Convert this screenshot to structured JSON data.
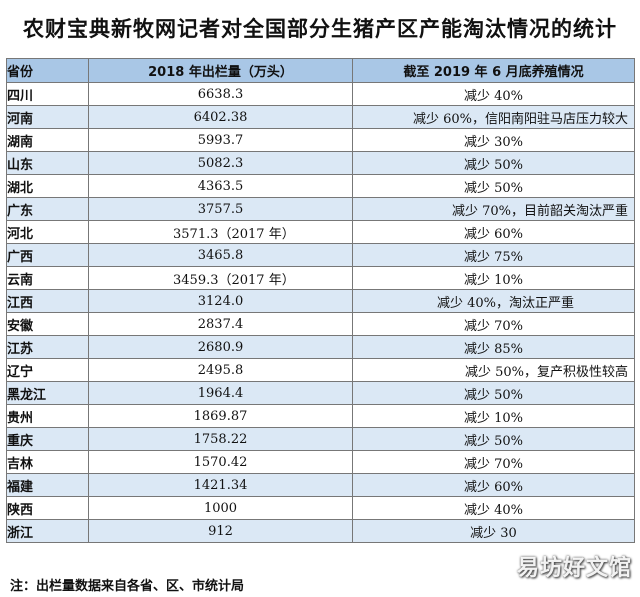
{
  "title": "农财宝典新牧网记者对全国部分生猪产区产能淘汰情况的统计",
  "table": {
    "headers": [
      "省份",
      "2018 年出栏量（万头）",
      "截至 2019 年 6 月底养殖情况"
    ],
    "rows": [
      {
        "province": "四川",
        "output": "6638.3",
        "status": "减少 40%"
      },
      {
        "province": "河南",
        "output": "6402.38",
        "status": "减少 60%，信阳南阳驻马店压力较大"
      },
      {
        "province": "湖南",
        "output": "5993.7",
        "status": "减少 30%"
      },
      {
        "province": "山东",
        "output": "5082.3",
        "status": "减少 50%"
      },
      {
        "province": "湖北",
        "output": "4363.5",
        "status": "减少 50%"
      },
      {
        "province": "广东",
        "output": "3757.5",
        "status": "减少 70%，目前韶关淘汰严重"
      },
      {
        "province": "河北",
        "output": "3571.3（2017 年）",
        "status": "减少 60%"
      },
      {
        "province": "广西",
        "output": "3465.8",
        "status": "减少 75%"
      },
      {
        "province": "云南",
        "output": "3459.3（2017 年）",
        "status": "减少 10%"
      },
      {
        "province": "江西",
        "output": "3124.0",
        "status": "减少 40%，淘汰正严重"
      },
      {
        "province": "安徽",
        "output": "2837.4",
        "status": "减少 70%"
      },
      {
        "province": "江苏",
        "output": "2680.9",
        "status": "减少 85%"
      },
      {
        "province": "辽宁",
        "output": "2495.8",
        "status": "减少 50%，复产积极性较高"
      },
      {
        "province": "黑龙江",
        "output": "1964.4",
        "status": "减少 50%"
      },
      {
        "province": "贵州",
        "output": "1869.87",
        "status": "减少 10%"
      },
      {
        "province": "重庆",
        "output": "1758.22",
        "status": "减少 50%"
      },
      {
        "province": "吉林",
        "output": "1570.42",
        "status": "减少 70%"
      },
      {
        "province": "福建",
        "output": "1421.34",
        "status": "减少 60%"
      },
      {
        "province": "陕西",
        "output": "1000",
        "status": "减少 40%"
      },
      {
        "province": "浙江",
        "output": "912",
        "status": "减少 30"
      }
    ]
  },
  "note": "注：出栏量数据来自各省、区、市统计局",
  "watermark": "易坊好文馆",
  "colors": {
    "header_bg": "#a9c7e6",
    "stripe_bg": "#dbe8f5",
    "border": "#777777"
  }
}
